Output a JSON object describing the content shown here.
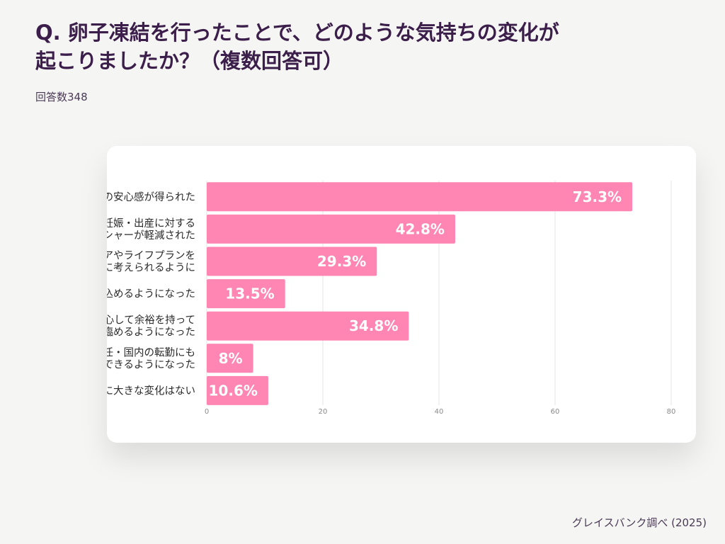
{
  "title_line1": "Q. 卵子凍結を行ったことで、どのような気持ちの変化が",
  "title_line2": "起こりましたか？（複数回答可）",
  "respondents": "回答数348",
  "source": "グレイスバンク調べ (2025)",
  "colors": {
    "bar": "#ff85b3",
    "title": "#3b1f4a",
    "grid": "#e6e6e6",
    "bar_label": "#ffffff"
  },
  "chart_data": {
    "type": "bar",
    "orientation": "horizontal",
    "categories": [
      [
        "将来への安心感が得られた"
      ],
      [
        "妊娠・出産に対する",
        "プレッシャーが軽減された"
      ],
      [
        "キャリアやライフプランを",
        "前向きに考えられるように"
      ],
      [
        "仕事に打ち込めるようになった"
      ],
      [
        "婚活に安心して余裕を持って",
        "臨めるようになった"
      ],
      [
        "海外赴任・国内の転勤にも",
        "チャレンジできるようになった"
      ],
      [
        "特に大きな変化はない"
      ]
    ],
    "values": [
      73.3,
      42.8,
      29.3,
      13.5,
      34.8,
      8,
      10.6
    ],
    "value_labels": [
      "73.3%",
      "42.8%",
      "29.3%",
      "13.5%",
      "34.8%",
      "8%",
      "10.6%"
    ],
    "xlim": [
      0,
      80
    ],
    "xticks": [
      0,
      20,
      40,
      60,
      80
    ],
    "grid": true,
    "unit": "%"
  }
}
